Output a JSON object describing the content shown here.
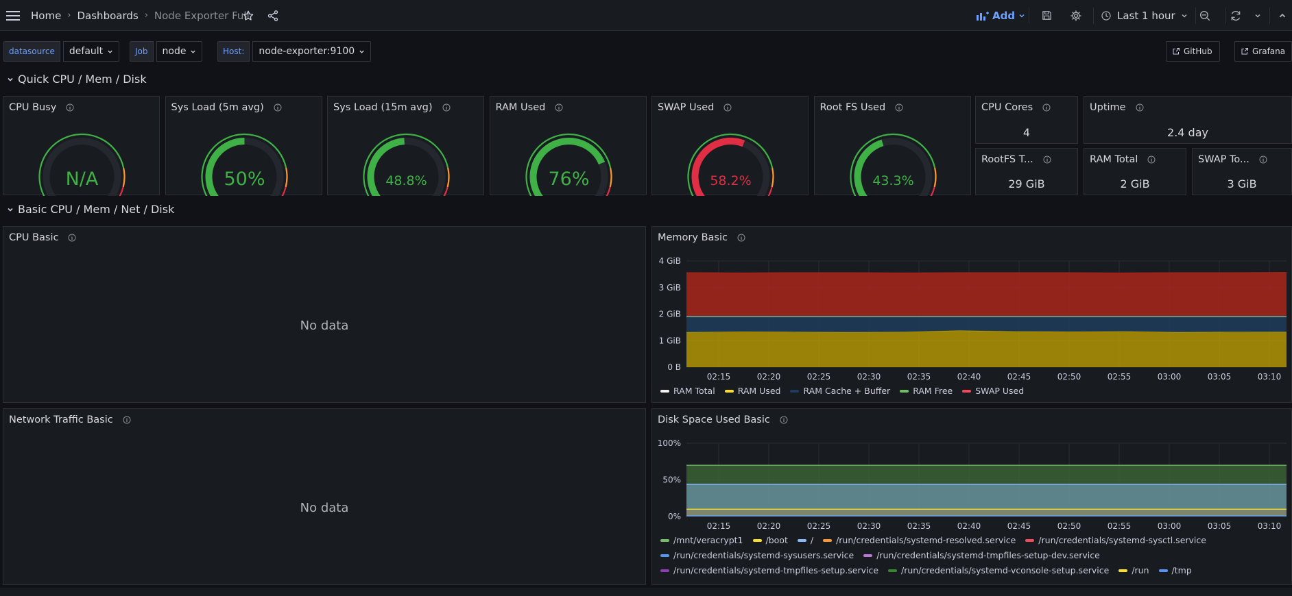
{
  "topbar": {
    "breadcrumb": [
      "Home",
      "Dashboards",
      "Node Exporter Full"
    ],
    "add_label": "Add",
    "time_range": "Last 1 hour"
  },
  "variables": [
    {
      "label": "datasource",
      "value": "default"
    },
    {
      "label": "Job",
      "value": "node"
    },
    {
      "label": "Host:",
      "value": "node-exporter:9100"
    }
  ],
  "links": [
    "GitHub",
    "Grafana"
  ],
  "rows": {
    "quick": "Quick CPU / Mem / Disk",
    "basic": "Basic CPU / Mem / Net / Disk"
  },
  "gauges": [
    {
      "title": "CPU Busy",
      "display": "N/A",
      "value": null,
      "color": "#3fb146"
    },
    {
      "title": "Sys Load (5m avg)",
      "display": "50%",
      "value": 50,
      "color": "#3fb146"
    },
    {
      "title": "Sys Load (15m avg)",
      "display": "48.8%",
      "value": 48.8,
      "color": "#3fb146"
    },
    {
      "title": "RAM Used",
      "display": "76%",
      "value": 76,
      "color": "#3fb146"
    },
    {
      "title": "SWAP Used",
      "display": "58.2%",
      "value": 58.2,
      "color": "#e02f44"
    },
    {
      "title": "Root FS Used",
      "display": "43.3%",
      "value": 43.3,
      "color": "#3fb146"
    }
  ],
  "stats": {
    "cpu_cores": {
      "title": "CPU Cores",
      "value": "4"
    },
    "uptime": {
      "title": "Uptime",
      "value": "2.4 day"
    },
    "rootfs_total": {
      "title": "RootFS T...",
      "value": "29 GiB"
    },
    "ram_total": {
      "title": "RAM Total",
      "value": "2 GiB"
    },
    "swap_total": {
      "title": "SWAP To...",
      "value": "3 GiB"
    }
  },
  "panels": {
    "cpu_basic": {
      "title": "CPU Basic",
      "message": "No data"
    },
    "network_basic": {
      "title": "Network Traffic Basic",
      "message": "No data"
    },
    "memory_basic": {
      "title": "Memory Basic"
    },
    "disk_basic": {
      "title": "Disk Space Used Basic"
    }
  },
  "chart_data": [
    {
      "type": "area",
      "title": "Memory Basic",
      "x": [
        "02:15",
        "02:20",
        "02:25",
        "02:30",
        "02:35",
        "02:40",
        "02:45",
        "02:50",
        "02:55",
        "03:00",
        "03:05",
        "03:10"
      ],
      "y_ticks": [
        "0 B",
        "1 GiB",
        "2 GiB",
        "3 GiB",
        "4 GiB"
      ],
      "ylim": [
        0,
        4
      ],
      "series": [
        {
          "name": "RAM Total",
          "color": "#f2f2f2",
          "values": [
            1.92,
            1.92,
            1.92,
            1.92,
            1.92,
            1.92,
            1.92,
            1.92,
            1.92,
            1.92,
            1.92,
            1.92
          ]
        },
        {
          "name": "RAM Used",
          "color": "#fade2a",
          "values": [
            1.32,
            1.34,
            1.33,
            1.32,
            1.33,
            1.38,
            1.35,
            1.34,
            1.35,
            1.32,
            1.33,
            1.33
          ]
        },
        {
          "name": "RAM Cache + Buffer",
          "color": "#1f3b5c",
          "values": [
            0.56,
            0.54,
            0.55,
            0.56,
            0.55,
            0.5,
            0.53,
            0.54,
            0.53,
            0.56,
            0.55,
            0.55
          ]
        },
        {
          "name": "RAM Free",
          "color": "#73bf69",
          "values": [
            0.04,
            0.04,
            0.04,
            0.04,
            0.04,
            0.04,
            0.04,
            0.04,
            0.04,
            0.04,
            0.04,
            0.04
          ]
        },
        {
          "name": "SWAP Used",
          "color": "#f2495c",
          "values": [
            1.64,
            1.63,
            1.64,
            1.64,
            1.63,
            1.64,
            1.64,
            1.64,
            1.63,
            1.64,
            1.64,
            1.65
          ]
        }
      ]
    },
    {
      "type": "area",
      "title": "Disk Space Used Basic",
      "x": [
        "02:15",
        "02:20",
        "02:25",
        "02:30",
        "02:35",
        "02:40",
        "02:45",
        "02:50",
        "02:55",
        "03:00",
        "03:05",
        "03:10"
      ],
      "y_ticks": [
        "0%",
        "50%",
        "100%"
      ],
      "ylim": [
        0,
        100
      ],
      "series": [
        {
          "name": "/mnt/veracrypt1",
          "color": "#73bf69",
          "value": 70
        },
        {
          "name": "/boot",
          "color": "#fade2a",
          "value": 10
        },
        {
          "name": "/",
          "color": "#8ab8ff",
          "value": 44
        },
        {
          "name": "/run/credentials/systemd-resolved.service",
          "color": "#ff9830",
          "value": 0
        },
        {
          "name": "/run/credentials/systemd-sysctl.service",
          "color": "#f2495c",
          "value": 0
        },
        {
          "name": "/run/credentials/systemd-sysusers.service",
          "color": "#5794f2",
          "value": 0
        },
        {
          "name": "/run/credentials/systemd-tmpfiles-setup-dev.service",
          "color": "#b877d9",
          "value": 0
        },
        {
          "name": "/run/credentials/systemd-tmpfiles-setup.service",
          "color": "#8f3bb8",
          "value": 0
        },
        {
          "name": "/run/credentials/systemd-vconsole-setup.service",
          "color": "#37872d",
          "value": 0
        },
        {
          "name": "/run",
          "color": "#fade2a",
          "value": 1
        },
        {
          "name": "/tmp",
          "color": "#5794f2",
          "value": 1
        }
      ]
    }
  ]
}
